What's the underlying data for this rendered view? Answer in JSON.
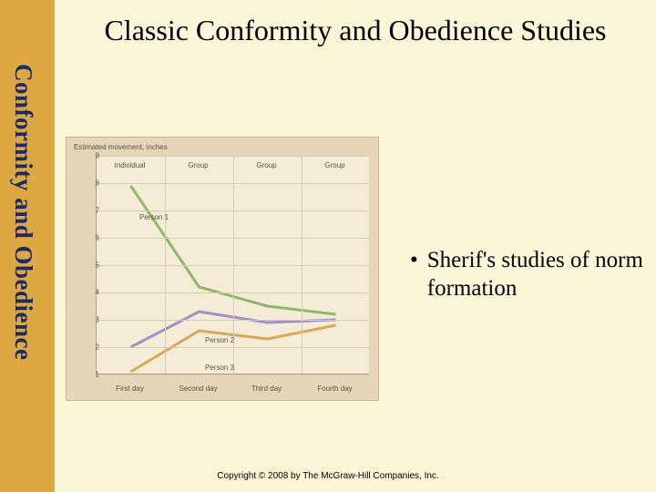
{
  "sidebar": {
    "label": "Conformity and Obedience"
  },
  "title": "Classic Conformity and Obedience Studies",
  "bullet": {
    "marker": "•",
    "text": "Sherif's studies of norm formation"
  },
  "copyright": "Copyright © 2008 by The McGraw-Hill Companies, Inc.",
  "chart": {
    "type": "line",
    "ylabel": "Estimated movement, inches",
    "ylim": [
      1,
      9
    ],
    "yticks": [
      1,
      2,
      3,
      4,
      5,
      6,
      7,
      8,
      9
    ],
    "categories": [
      "First day",
      "Second day",
      "Third day",
      "Fourth day"
    ],
    "col_headers": [
      "Individual",
      "Group",
      "Group",
      "Group"
    ],
    "plot_bg": "#f4ecd6",
    "container_bg": "#e6d6b8",
    "grid_color": "#d8cdb2",
    "axis_color": "#b0a080",
    "text_color": "#5a5040",
    "label_fontsize": 8,
    "line_width": 3,
    "series": [
      {
        "name": "Person 1",
        "color": "#8fb86b",
        "values": [
          7.9,
          4.2,
          3.5,
          3.2
        ],
        "label_pos": {
          "x": 0.16,
          "y_val": 6.9
        }
      },
      {
        "name": "Person 2",
        "color": "#a38fc2",
        "values": [
          2.0,
          3.3,
          2.9,
          3.0
        ],
        "label_pos": {
          "x": 0.4,
          "y_val": 2.4
        }
      },
      {
        "name": "Person 3",
        "color": "#d9a85a",
        "values": [
          1.1,
          2.6,
          2.3,
          2.8
        ],
        "label_pos": {
          "x": 0.4,
          "y_val": 1.4
        }
      }
    ]
  }
}
